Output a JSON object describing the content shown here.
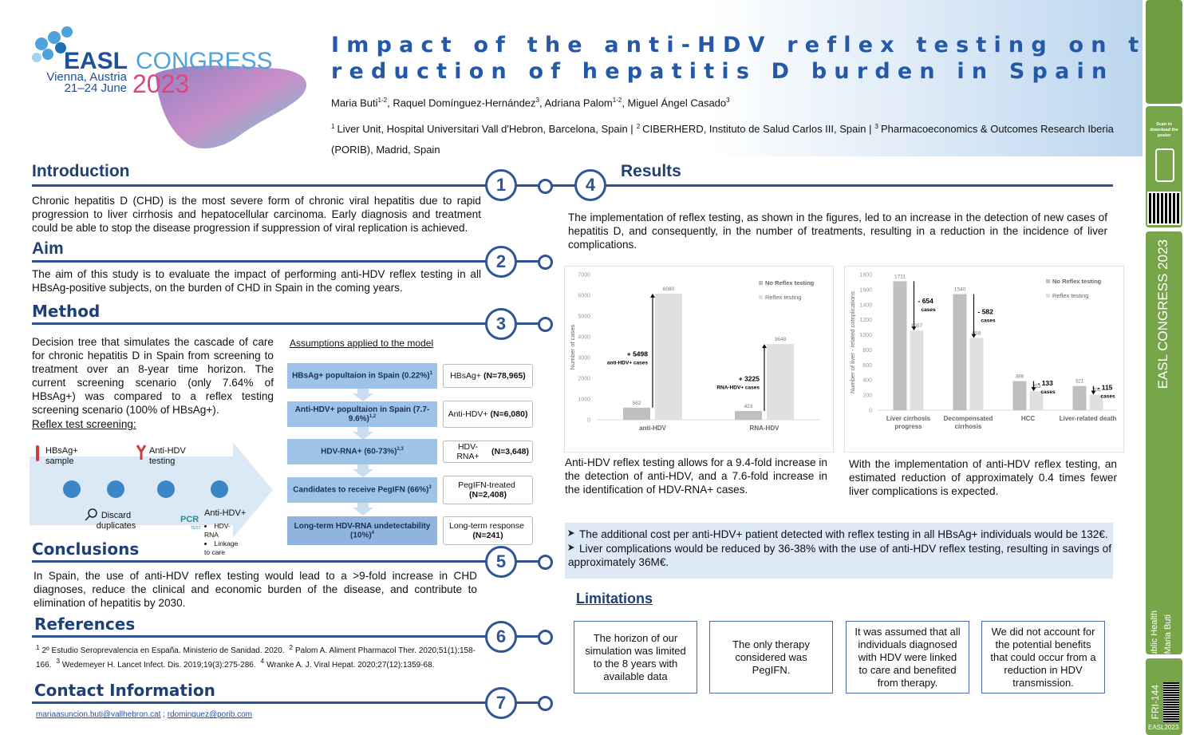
{
  "logo": {
    "name": "EASL",
    "event": "CONGRESS",
    "place": "Vienna, Austria",
    "dates": "21–24 June",
    "year": "2023"
  },
  "header": {
    "title": [
      "Impact of the anti-HDV reflex testing on the",
      "reduction of hepatitis D burden in Spain"
    ],
    "authors": [
      {
        "name": "Maria Buti",
        "aff": "1-2"
      },
      {
        "name": ", Raquel Domínguez-Hernández",
        "aff": "3"
      },
      {
        "name": ", Adriana Palom",
        "aff": "1-2"
      },
      {
        "name": ", Miguel Ángel Casado",
        "aff": "3"
      }
    ],
    "affiliations": [
      {
        "num": "1",
        "text": "Liver Unit, Hospital Universitari Vall d'Hebron, Barcelona, Spain |"
      },
      {
        "num": "2",
        "text": "CIBERHERD, Instituto de Salud Carlos III, Spain |"
      },
      {
        "num": "3",
        "text": "Pharmacoeconomics & Outcomes Research Iberia (PORIB), Madrid, Spain"
      }
    ]
  },
  "sections": {
    "introduction": {
      "number": "1",
      "heading": "Introduction",
      "text": "Chronic hepatitis D (CHD) is the most severe form of chronic viral hepatitis due to rapid progression to liver cirrhosis and hepatocellular carcinoma. Early diagnosis and treatment could be able to stop the disease progression if suppression of viral replication is achieved."
    },
    "aim": {
      "number": "2",
      "heading": "Aim",
      "text": "The aim of this study is to evaluate the impact of performing anti-HDV reflex testing in all HBsAg-positive subjects, on the burden of CHD in Spain in the coming years."
    },
    "method": {
      "number": "3",
      "heading": "Method",
      "text": "Decision tree that simulates the cascade of care for chronic hepatitis D in Spain from screening to treatment over an 8-year time horizon. The current screening scenario (only 7.64% of HBsAg+) was compared to a reflex testing screening scenario (100% of HBsAg+).",
      "subheading": "Reflex test screening:",
      "diagram": {
        "sample": "HBsAg+ sample",
        "testing": "Anti-HDV testing",
        "discard": "Discard duplicates",
        "positive": "Anti-HDV+",
        "pcr": "PCR",
        "pcr_sub": "TEST",
        "bullets": [
          "HDV-RNA",
          "Linkage to care"
        ]
      },
      "assumptions_title": "Assumptions applied to the model",
      "flow": [
        {
          "text": "HBsAg+ popultaion in Spain (0.22%)",
          "ref": "1",
          "label": "HBsAg+",
          "n": "(N=78,965)"
        },
        {
          "text": "Anti-HDV+ popultaion in Spain (7.7-9.6%)",
          "ref": "1,2",
          "label": "Anti-HDV+",
          "n": "(N=6,080)"
        },
        {
          "text": "HDV-RNA+ (60-73%)",
          "ref": "2,3",
          "label": "HDV-RNA+",
          "n": "(N=3,648)"
        },
        {
          "text": "Candidates to receive PegIFN (66%)",
          "ref": "3",
          "label": "PegIFN-treated",
          "n": "(N=2,408)"
        },
        {
          "text": "Long-term HDV-RNA undetectability (10%)",
          "ref": "4",
          "label": "Long-term response",
          "n": "(N=241)"
        }
      ]
    },
    "results": {
      "number": "4",
      "heading": "Results",
      "text": "The implementation of reflex testing, as shown in the figures, led to an increase in the detection of new cases of hepatitis D, and consequently, in the number of treatments, resulting in a reduction in the incidence of liver complications.",
      "captions": [
        "Anti-HDV reflex testing allows for a 9.4-fold increase in the detection of anti-HDV, and a 7.6-fold increase in the identification of HDV-RNA+ cases.",
        "With the implementation of anti-HDV reflex testing, an estimated reduction of approximately 0.4 times fewer liver complications is expected."
      ],
      "bullets": [
        "The additional cost per anti-HDV+ patient detected with reflex testing in all HBsAg+ individuals would be 132€.",
        "Liver complications would be reduced by 36-38% with the use of anti-HDV reflex testing, resulting in savings of approximately 36M€."
      ]
    },
    "conclusions": {
      "number": "5",
      "heading": "Conclusions",
      "text": "In Spain, the use of anti-HDV reflex testing would lead to a >9-fold increase in CHD diagnoses, reduce the clinical and economic burden of the disease, and contribute to elimination of hepatitis by 2030."
    },
    "references": {
      "number": "6",
      "heading": "References",
      "items": [
        {
          "num": "1",
          "text": "2º Estudio Seroprevalencia en España. Ministerio de Sanidad. 2020."
        },
        {
          "num": "2",
          "text": "Palom A. Aliment Pharmacol Ther. 2020;51(1):158-166."
        },
        {
          "num": "3",
          "text": "Wedemeyer H. Lancet Infect. Dis. 2019;19(3):275-286."
        },
        {
          "num": "4",
          "text": "Wranke A. J. Viral Hepat. 2020;27(12):1359-68."
        }
      ]
    },
    "contact": {
      "number": "7",
      "heading": "Contact Information",
      "emails": [
        "mariaasuncion.buti@vallhebron.cat",
        "rdominguez@porib.com"
      ],
      "separator": ";"
    },
    "limitations": {
      "heading": "Limitations",
      "items": [
        "The horizon of our simulation was limited to the 8 years with available data",
        "The only therapy considered was PegIFN.",
        "It was assumed that all individuals diagnosed with HDV were linked to care and benefited from therapy.",
        "We did not account for the potential benefits that could occur from a reduction in HDV transmission."
      ]
    }
  },
  "sidebar": {
    "scan": "Scan to download the poster",
    "congress": "EASL CONGRESS 2023",
    "topic": "Public Health",
    "author": "Maria Buti",
    "code": "FRI-144",
    "tag": "EASL2023"
  },
  "chart_data": [
    {
      "type": "bar",
      "categories": [
        "anti-HDV",
        "RNA-HDV"
      ],
      "ylabel": "Number of cases",
      "series": [
        {
          "name": "No Reflex testing",
          "color": "#bfbfbf",
          "values": [
            582,
            423
          ]
        },
        {
          "name": "Reflex testing",
          "color": "#e0e0e0",
          "values": [
            6080,
            3648
          ]
        }
      ],
      "ylim": [
        0,
        7000
      ],
      "yticks": [
        0,
        1000,
        2000,
        3000,
        4000,
        5000,
        6000,
        7000
      ],
      "grid": false,
      "annotations": [
        {
          "text": "+ 5498",
          "sub": "anti-HDV+ cases"
        },
        {
          "text": "+ 3225",
          "sub": "RNA-HDV+ cases"
        }
      ]
    },
    {
      "type": "bar",
      "categories": [
        "Liver cirrhosis progress",
        "Decompensated cirrhosis",
        "HCC",
        "Liver-related death"
      ],
      "ylabel": "Number of liver - related complications",
      "series": [
        {
          "name": "No Reflex testing",
          "color": "#bfbfbf",
          "values": [
            1711,
            1540,
            386,
            321
          ]
        },
        {
          "name": "Reflex testing",
          "color": "#e0e0e0",
          "values": [
            1057,
            958,
            253,
            206
          ]
        }
      ],
      "ylim": [
        0,
        1800
      ],
      "yticks": [
        0,
        200,
        400,
        600,
        800,
        1000,
        1200,
        1400,
        1600,
        1800
      ],
      "grid": false,
      "annotations": [
        {
          "text": "- 654",
          "sub": "cases"
        },
        {
          "text": "- 582",
          "sub": "cases"
        },
        {
          "text": "- 133",
          "sub": "cases"
        },
        {
          "text": "- 115",
          "sub": "cases"
        }
      ]
    }
  ]
}
